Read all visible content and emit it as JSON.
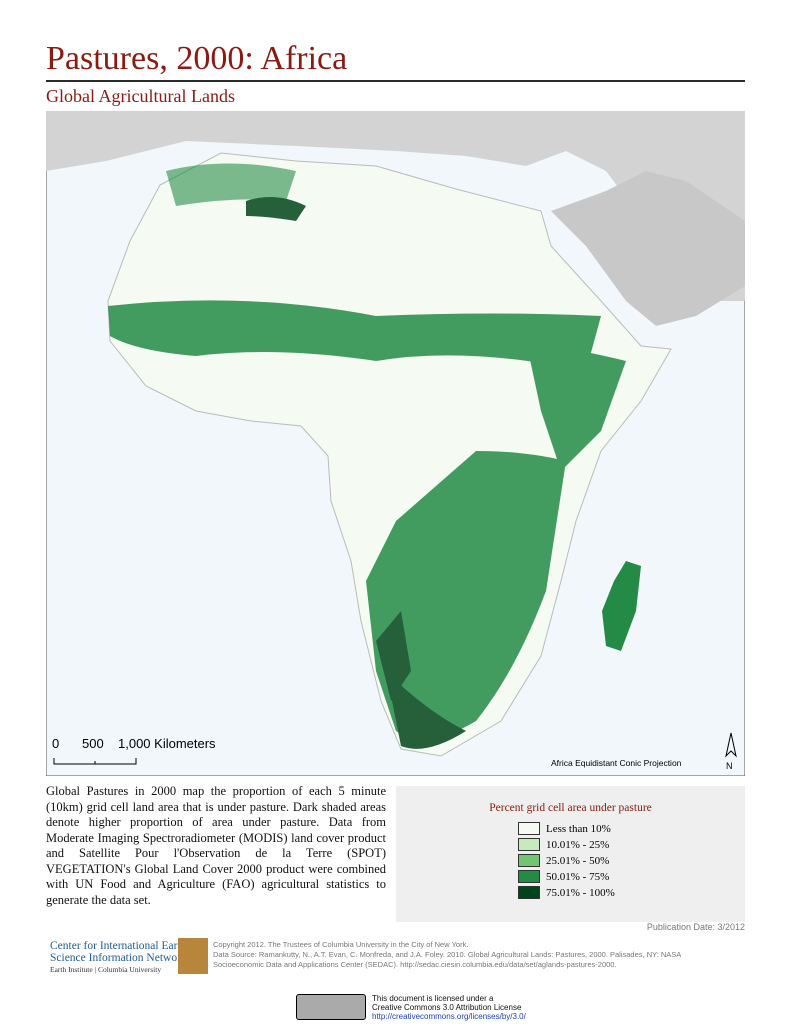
{
  "header": {
    "title": "Pastures, 2000: Africa",
    "subtitle": "Global Agricultural Lands"
  },
  "map": {
    "scale_bar": [
      "0",
      "500",
      "1,000 Kilometers"
    ],
    "projection": "Africa Equidistant Conic Projection",
    "north": "N"
  },
  "description": "Global Pastures in 2000 map the proportion of each 5 minute (10km) grid cell land area that is under pasture. Dark shaded areas denote higher proportion of area under pasture. Data from Moderate Imaging Spectroradiometer (MODIS) land cover product and Satellite Pour l'Observation de la Terre (SPOT) VEGETATION's Global Land Cover 2000 product were combined with UN Food and Agriculture (FAO) agricultural statistics to generate the data set.",
  "legend": {
    "title": "Percent grid cell area under pasture",
    "items": [
      {
        "label": "Less than 10%",
        "color": "#f5faf3"
      },
      {
        "label": "10.01% - 25%",
        "color": "#c7e9c0"
      },
      {
        "label": "25.01% - 50%",
        "color": "#74c476"
      },
      {
        "label": "50.01% - 75%",
        "color": "#238b45"
      },
      {
        "label": "75.01% - 100%",
        "color": "#00441b"
      }
    ]
  },
  "publication": "Publication Date: 3/2012",
  "organization": [
    "Center for International Earth",
    "Science Information Network",
    "Earth Institute | Columbia University"
  ],
  "credits": [
    "Copyright 2012. The Trustees of Columbia University in the City of New York.",
    "Data Source: Ramankutty, N., A.T. Evan, C. Monfreda, and J.A. Foley. 2010. Global Agricultural Lands: Pastures, 2000. Palisades, NY: NASA",
    "Socioeconomic Data and Applications Center (SEDAC). http://sedac.ciesin.columbia.edu/data/set/aglands-pastures-2000."
  ],
  "license": [
    "This document is licensed under a",
    "Creative Commons 3.0 Attribution License",
    "http://creativecommons.org/licenses/by/3.0/"
  ]
}
